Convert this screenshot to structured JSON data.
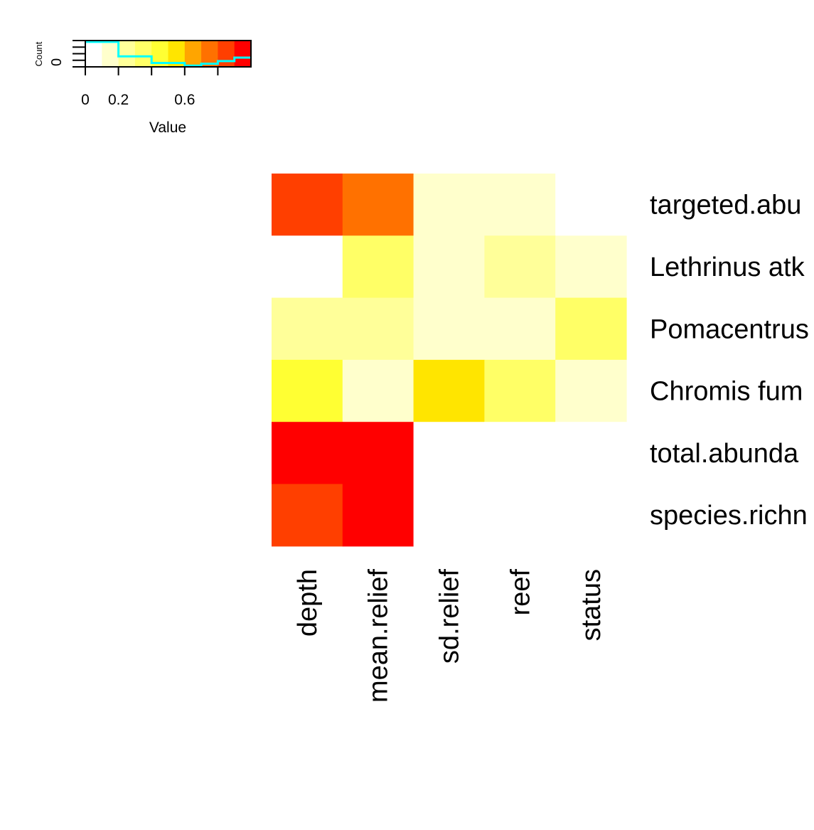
{
  "chart_data": [
    {
      "type": "heatmap",
      "rows": [
        "targeted.abundance",
        "Lethrinus atkinsoni",
        "Pomacentrus moluccensis",
        "Chromis fumea",
        "total.abundance",
        "species.richness"
      ],
      "row_labels_visible": [
        "targeted.abu",
        "Lethrinus atk",
        "Pomacentrus",
        "Chromis fum",
        "total.abunda",
        "species.richn"
      ],
      "columns": [
        "depth",
        "mean.relief",
        "sd.relief",
        "reef",
        "status"
      ],
      "values": [
        [
          0.85,
          0.75,
          0.15,
          0.15,
          0.0
        ],
        [
          0.0,
          0.35,
          0.15,
          0.25,
          0.15
        ],
        [
          0.25,
          0.25,
          0.15,
          0.15,
          0.35
        ],
        [
          0.45,
          0.15,
          0.55,
          0.35,
          0.15
        ],
        [
          0.95,
          0.95,
          0.0,
          0.0,
          0.0
        ],
        [
          0.85,
          0.95,
          0.0,
          0.0,
          0.0
        ]
      ],
      "colors": [
        "#FFFFFF",
        "#FFFFCC",
        "#FFFF99",
        "#FFFF66",
        "#FFFF33",
        "#FFE500",
        "#FFA500",
        "#FF7100",
        "#FF3F00",
        "#FF0000"
      ],
      "range": [
        0,
        1
      ]
    },
    {
      "type": "bar",
      "title": "",
      "xlabel": "Value",
      "ylabel": "Count",
      "xlim": [
        0,
        1
      ],
      "x_ticks": [
        0,
        0.2,
        0.6
      ],
      "y_tick_label": "0",
      "histogram_x": [
        0.0,
        0.2,
        0.4,
        0.6,
        0.7,
        0.8,
        0.9,
        1.0
      ],
      "histogram_level": [
        0.95,
        0.4,
        0.15,
        0.05,
        0.12,
        0.22,
        0.35,
        0.35
      ]
    }
  ]
}
